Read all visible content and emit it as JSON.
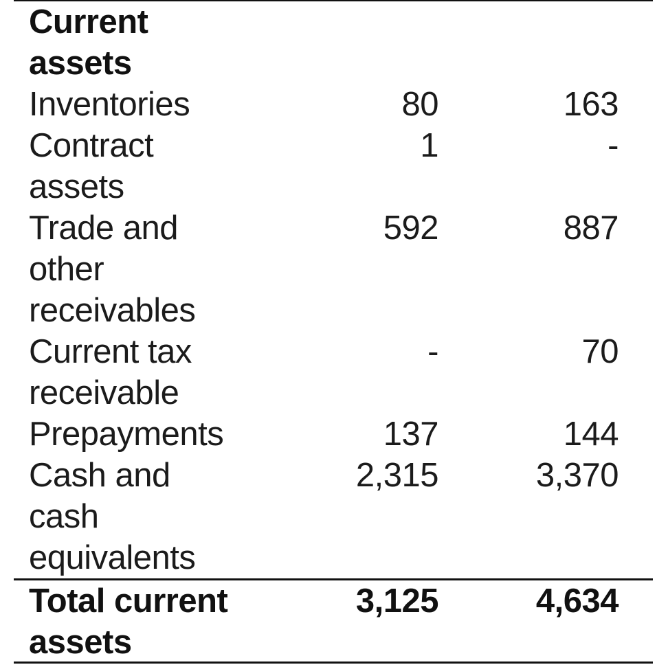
{
  "section_heading": "Current\nassets",
  "rows": [
    {
      "label": "Inventories",
      "col1": "80",
      "col2": "163"
    },
    {
      "label": "Contract\nassets",
      "col1": "1",
      "col2": "-"
    },
    {
      "label": "Trade and\nother\nreceivables",
      "col1": "592",
      "col2": "887"
    },
    {
      "label": "Current tax\nreceivable",
      "col1": "-",
      "col2": "70"
    },
    {
      "label": "Prepayments",
      "col1": "137",
      "col2": "144"
    },
    {
      "label": "Cash and\ncash\nequivalents",
      "col1": "2,315",
      "col2": "3,370"
    }
  ],
  "total": {
    "label": "Total current\nassets",
    "col1": "3,125",
    "col2": "4,634"
  }
}
